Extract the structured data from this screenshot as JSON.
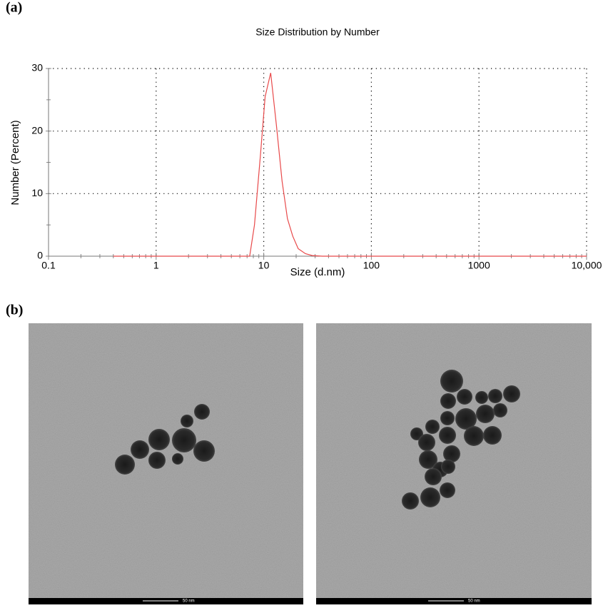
{
  "panels": {
    "a": "(a)",
    "b": "(b)"
  },
  "chart_data": {
    "type": "line",
    "title": "Size Distribution by Number",
    "x_label": "Size (d.nm)",
    "y_label": "Number (Percent)",
    "x": [
      0.4,
      0.5,
      0.6,
      0.8,
      1,
      1.5,
      2,
      3,
      4,
      5,
      6,
      7,
      7.4,
      8.2,
      9.3,
      10.3,
      11.6,
      13.1,
      14.8,
      16.6,
      18.6,
      20.9,
      24.4,
      28.2,
      35,
      50,
      100,
      200,
      500,
      1000,
      2000,
      5000,
      10000
    ],
    "values": [
      0,
      0,
      0,
      0,
      0,
      0,
      0,
      0,
      0,
      0,
      0,
      0,
      0,
      5,
      16,
      25.5,
      29.3,
      21,
      12,
      6,
      3.2,
      1.2,
      0.4,
      0.1,
      0,
      0,
      0,
      0,
      0,
      0,
      0,
      0,
      0
    ],
    "color": "#e8494a",
    "x_log": true,
    "xlim": [
      0.1,
      10000
    ],
    "xticks": [
      0.1,
      1,
      10,
      100,
      1000,
      {
        "value": 10000,
        "label": "10,000"
      }
    ],
    "ylim": [
      0,
      30
    ],
    "yticks": [
      0,
      10,
      20,
      30
    ],
    "grid": true
  },
  "images": [
    {
      "scale_label": "50 nm"
    },
    {
      "scale_label": "50 nm"
    }
  ]
}
